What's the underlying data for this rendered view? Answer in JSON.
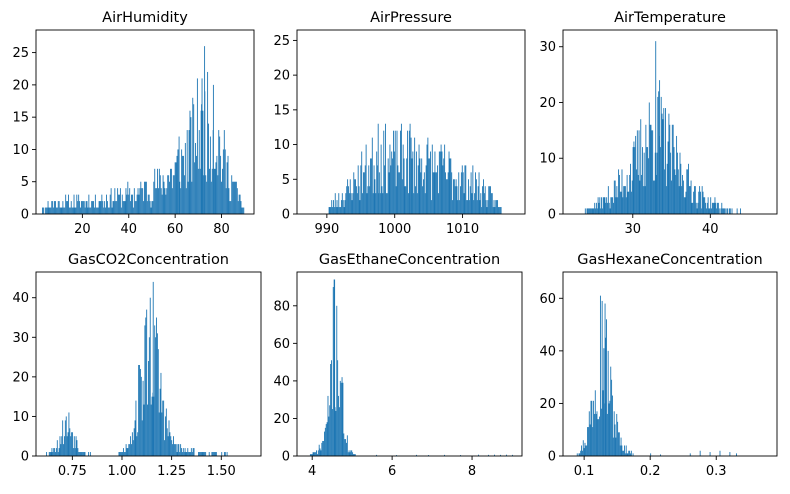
{
  "colors": {
    "bar": "#1f77b4",
    "axis": "#000000",
    "background": "#ffffff"
  },
  "chart_data": [
    {
      "type": "bar",
      "title": "AirHumidity",
      "xlim": [
        0,
        94
      ],
      "ylim": [
        0,
        28.5
      ],
      "xticks": [
        20,
        40,
        60,
        80
      ],
      "yticks": [
        0,
        5,
        10,
        15,
        20,
        25
      ],
      "bin_width": 0.4,
      "profile_x": [
        1,
        5,
        15,
        25,
        35,
        45,
        50,
        55,
        60,
        65,
        68,
        70,
        72,
        74,
        76,
        78,
        80,
        84,
        88,
        90
      ],
      "profile_y": [
        0,
        1.5,
        1.7,
        2,
        2.6,
        3.2,
        4,
        5,
        6.5,
        9,
        11.5,
        13,
        14,
        13.5,
        12.5,
        11,
        9,
        5.5,
        2,
        0
      ],
      "peaks": [
        {
          "x": 72.5,
          "y": 26
        },
        {
          "x": 76.3,
          "y": 20
        },
        {
          "x": 71.2,
          "y": 17
        },
        {
          "x": 61.5,
          "y": 12
        }
      ],
      "seed": 11
    },
    {
      "type": "bar",
      "title": "AirPressure",
      "xlim": [
        985.6,
        1019.2
      ],
      "ylim": [
        0,
        26.5
      ],
      "xticks": [
        990,
        1000,
        1010
      ],
      "yticks": [
        0,
        5,
        10,
        15,
        20,
        25
      ],
      "bin_width": 0.13,
      "profile_x": [
        990,
        991,
        993,
        995,
        997,
        999,
        1001,
        1003,
        1005,
        1007,
        1009,
        1011,
        1013,
        1015,
        1016
      ],
      "profile_y": [
        0,
        1.5,
        3,
        5.5,
        7.5,
        7.8,
        7.8,
        7.5,
        7,
        6.5,
        5.5,
        4.5,
        3.5,
        1.5,
        0
      ],
      "peaks": [
        {
          "x": 997.5,
          "y": 13
        },
        {
          "x": 1002.2,
          "y": 13
        }
      ],
      "seed": 23
    },
    {
      "type": "bar",
      "title": "AirTemperature",
      "xlim": [
        21.0,
        48.6
      ],
      "ylim": [
        0,
        33
      ],
      "xticks": [
        30,
        40
      ],
      "yticks": [
        0,
        10,
        20,
        30
      ],
      "bin_width": 0.11,
      "profile_x": [
        22.5,
        24,
        26,
        28,
        30,
        31,
        32,
        33,
        34,
        35,
        36,
        38,
        40,
        42,
        44,
        46
      ],
      "profile_y": [
        0,
        0.5,
        2,
        4.5,
        8,
        11,
        13.5,
        14.5,
        13,
        10.5,
        8,
        4,
        2,
        0.8,
        0.4,
        0
      ],
      "peaks": [
        {
          "x": 32.9,
          "y": 31
        },
        {
          "x": 33.4,
          "y": 24
        }
      ],
      "seed": 37
    },
    {
      "type": "bar",
      "title": "GasCO2Concentration",
      "xlim": [
        0.567,
        1.7
      ],
      "ylim": [
        0,
        46.5
      ],
      "xticks": [
        0.75,
        1.0,
        1.25,
        1.5
      ],
      "yticks": [
        0,
        10,
        20,
        30,
        40
      ],
      "bin_width": 0.0045,
      "profile_x": [
        0.6,
        0.64,
        0.68,
        0.7,
        0.72,
        0.74,
        0.76,
        0.78,
        0.82,
        0.9,
        0.98,
        1.02,
        1.05,
        1.08,
        1.11,
        1.14,
        1.17,
        1.2,
        1.23,
        1.26,
        1.3,
        1.35,
        1.45,
        1.56,
        1.6
      ],
      "profile_y": [
        0,
        1,
        3,
        6,
        8,
        7,
        5,
        2.5,
        0.5,
        0.2,
        0.3,
        2,
        6,
        13,
        22,
        28,
        24,
        14,
        7,
        3,
        1.5,
        1,
        0.5,
        0.3,
        0
      ],
      "peaks": [
        {
          "x": 1.155,
          "y": 44
        }
      ],
      "seed": 53
    },
    {
      "type": "bar",
      "title": "GasEthaneConcentration",
      "xlim": [
        3.62,
        9.25
      ],
      "ylim": [
        0,
        98
      ],
      "xticks": [
        4,
        6,
        8
      ],
      "yticks": [
        0,
        20,
        40,
        60,
        80
      ],
      "bin_width": 0.022,
      "profile_x": [
        3.9,
        4.1,
        4.25,
        4.4,
        4.5,
        4.6,
        4.7,
        4.8,
        4.9,
        5.0,
        5.1
      ],
      "profile_y": [
        0,
        2,
        6,
        20,
        55,
        62,
        45,
        15,
        5,
        2,
        0
      ],
      "peaks": [
        {
          "x": 4.55,
          "y": 94
        }
      ],
      "sparse": [
        {
          "x": 5.6,
          "y": 0.6
        },
        {
          "x": 6.1,
          "y": 0.5
        },
        {
          "x": 6.6,
          "y": 0.6
        },
        {
          "x": 6.9,
          "y": 0.5
        },
        {
          "x": 7.3,
          "y": 0.6
        },
        {
          "x": 7.7,
          "y": 0.5
        },
        {
          "x": 8.15,
          "y": 0.7
        },
        {
          "x": 8.4,
          "y": 0.6
        },
        {
          "x": 8.55,
          "y": 0.7
        },
        {
          "x": 8.7,
          "y": 0.6
        },
        {
          "x": 8.85,
          "y": 0.7
        },
        {
          "x": 9.0,
          "y": 0.6
        }
      ],
      "seed": 71
    },
    {
      "type": "bar",
      "title": "GasHexaneConcentration",
      "xlim": [
        0.068,
        0.392
      ],
      "ylim": [
        0,
        70
      ],
      "xticks": [
        0.1,
        0.2,
        0.3
      ],
      "yticks": [
        0,
        20,
        40,
        60
      ],
      "bin_width": 0.0013,
      "profile_x": [
        0.085,
        0.095,
        0.105,
        0.115,
        0.122,
        0.128,
        0.135,
        0.145,
        0.155,
        0.165,
        0.18
      ],
      "profile_y": [
        0,
        2,
        8,
        25,
        40,
        42,
        32,
        15,
        5,
        2,
        0
      ],
      "peaks": [
        {
          "x": 0.124,
          "y": 61
        },
        {
          "x": 0.131,
          "y": 58
        }
      ],
      "sparse": [
        {
          "x": 0.2,
          "y": 1
        },
        {
          "x": 0.215,
          "y": 0.6
        },
        {
          "x": 0.26,
          "y": 1
        },
        {
          "x": 0.275,
          "y": 2
        },
        {
          "x": 0.29,
          "y": 1.5
        },
        {
          "x": 0.305,
          "y": 2
        },
        {
          "x": 0.32,
          "y": 1.5
        },
        {
          "x": 0.33,
          "y": 1
        }
      ],
      "seed": 97
    }
  ]
}
